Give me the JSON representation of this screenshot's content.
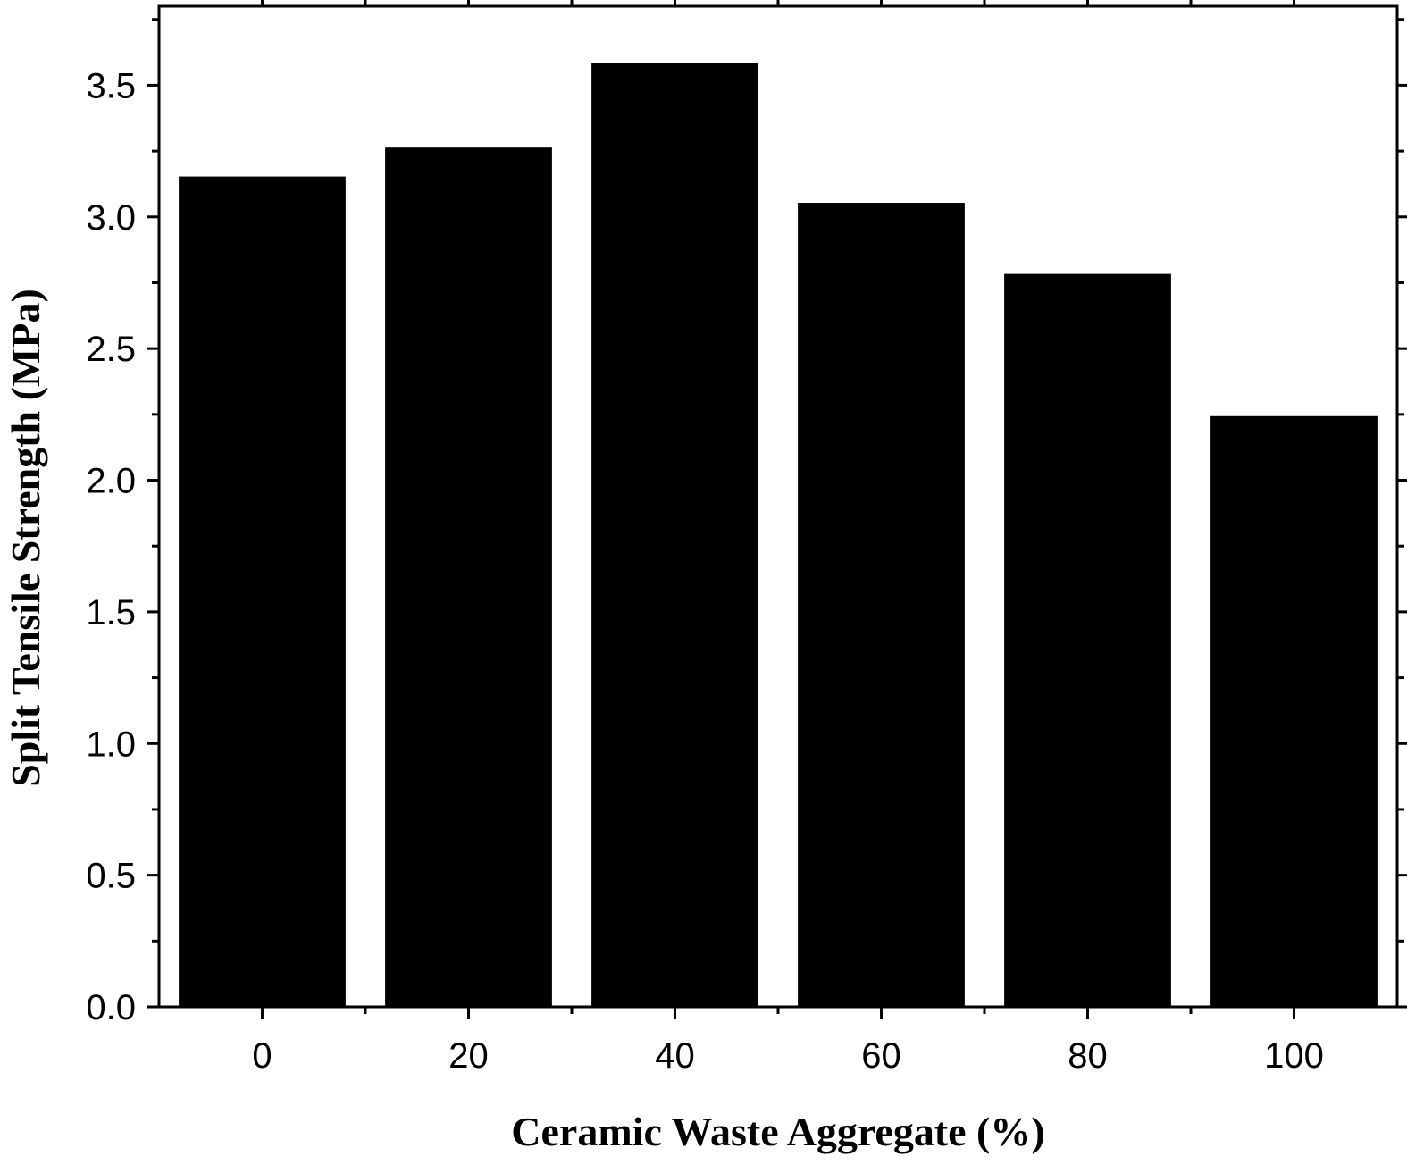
{
  "chart_data": {
    "type": "bar",
    "categories": [
      "0",
      "20",
      "40",
      "60",
      "80",
      "100"
    ],
    "values": [
      3.15,
      3.26,
      3.58,
      3.05,
      2.78,
      2.24
    ],
    "title": "",
    "xlabel": "Ceramic Waste Aggregate (%)",
    "ylabel": "Split Tensile Strength (MPa)",
    "ylim": [
      0,
      3.8
    ],
    "xlim": [
      -10,
      110
    ],
    "yticks": [
      "0.0",
      "0.5",
      "1.0",
      "1.5",
      "2.0",
      "2.5",
      "3.0",
      "3.5"
    ],
    "grid": false,
    "legend": "none",
    "bar_color": "#000000"
  }
}
